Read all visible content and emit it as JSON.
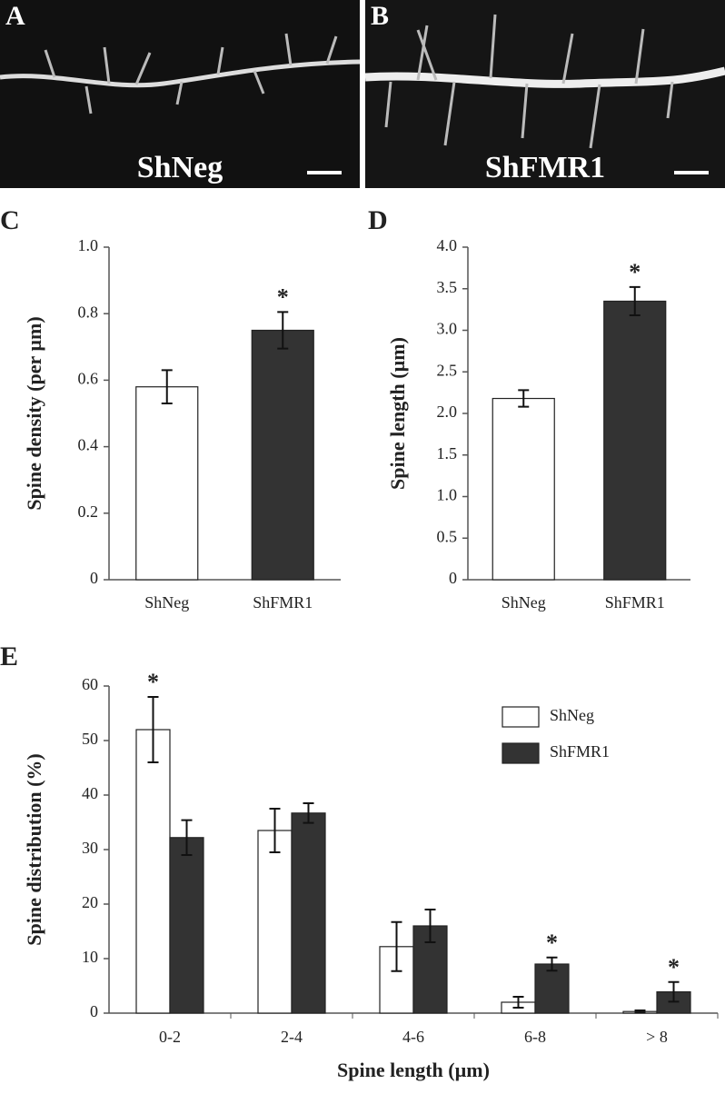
{
  "images": [
    {
      "panel": "A",
      "label": "ShNeg"
    },
    {
      "panel": "B",
      "label": "ShFMR1"
    }
  ],
  "chart_data": [
    {
      "type": "bar",
      "panel": "C",
      "ylabel": "Spine density (per µm)",
      "categories": [
        "ShNeg",
        "ShFMR1"
      ],
      "values": [
        0.58,
        0.75
      ],
      "errors": [
        0.05,
        0.055
      ],
      "colors": [
        "#ffffff",
        "#333333"
      ],
      "significance": [
        null,
        "*"
      ],
      "ylim": [
        0,
        1
      ],
      "yticks": [
        0,
        0.2,
        0.4,
        0.6,
        0.8,
        {
          "value": 1,
          "label": "1.0"
        }
      ]
    },
    {
      "type": "bar",
      "panel": "D",
      "ylabel": "Spine length (µm)",
      "categories": [
        "ShNeg",
        "ShFMR1"
      ],
      "values": [
        2.18,
        3.35
      ],
      "errors": [
        0.1,
        0.17
      ],
      "colors": [
        "#ffffff",
        "#333333"
      ],
      "significance": [
        null,
        "*"
      ],
      "ylim": [
        0,
        4
      ],
      "yticks": [
        0,
        0.5,
        {
          "value": 1,
          "label": "1.0"
        },
        1.5,
        {
          "value": 2,
          "label": "2.0"
        },
        2.5,
        {
          "value": 3,
          "label": "3.0"
        },
        3.5,
        {
          "value": 4,
          "label": "4.0"
        }
      ]
    },
    {
      "type": "grouped-bar",
      "panel": "E",
      "ylabel": "Spine distribution (%)",
      "xlabel": "Spine length (µm)",
      "categories": [
        "0-2",
        "2-4",
        "4-6",
        "6-8",
        "> 8"
      ],
      "series": [
        {
          "name": "ShNeg",
          "color": "#ffffff",
          "values": [
            52,
            33.5,
            12.2,
            2,
            0.3
          ],
          "errors": [
            6,
            4,
            4.5,
            1,
            0.2
          ],
          "significance": [
            "*",
            null,
            null,
            null,
            null
          ]
        },
        {
          "name": "ShFMR1",
          "color": "#333333",
          "values": [
            32.2,
            36.7,
            16,
            9,
            3.9
          ],
          "errors": [
            3.2,
            1.8,
            3,
            1.2,
            1.8
          ],
          "significance": [
            null,
            null,
            null,
            "*",
            "*"
          ]
        }
      ],
      "legend": "top-right",
      "ylim": [
        0,
        60
      ],
      "yticks": [
        0,
        10,
        20,
        30,
        40,
        50,
        60
      ]
    }
  ]
}
